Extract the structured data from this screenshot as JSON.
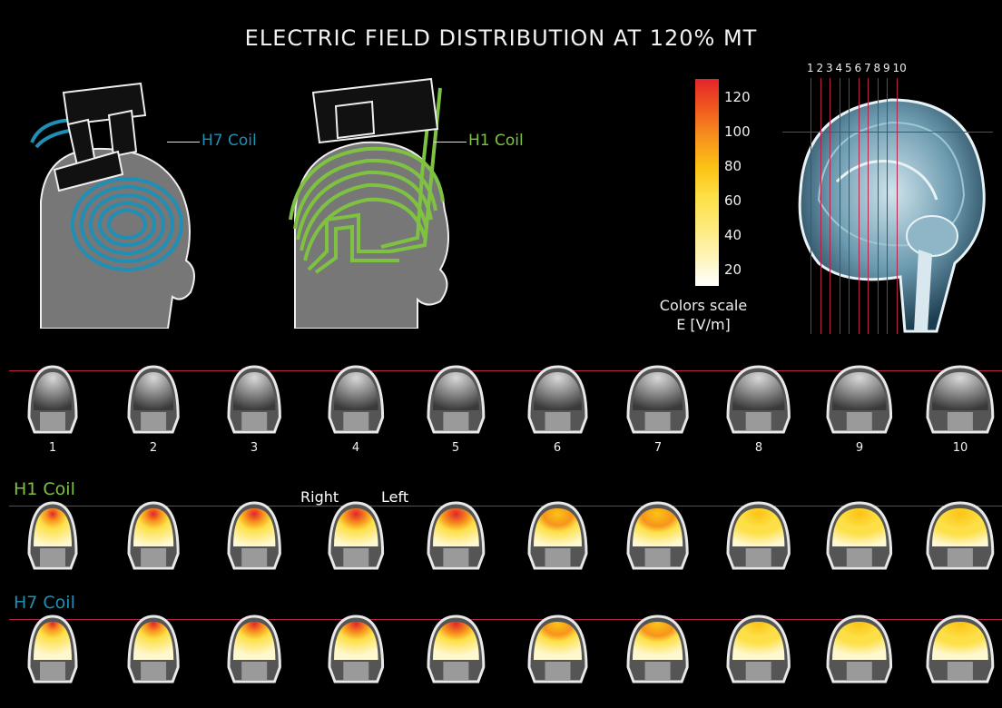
{
  "title": "ELECTRIC FIELD DISTRIBUTION AT 120% MT",
  "coils": {
    "h7_label": "H7 Coil",
    "h1_label": "H1 Coil"
  },
  "color_scale": {
    "caption_line1": "Colors scale",
    "caption_line2": "E [V/m]",
    "ticks": [
      "120",
      "100",
      "80",
      "60",
      "40",
      "20"
    ],
    "colors": [
      "#e3242b",
      "#f05a1e",
      "#f7941d",
      "#fbc314",
      "#fde047",
      "#fdea7a",
      "#fef4b8",
      "#ffffff"
    ]
  },
  "sagittal": {
    "slice_numbers": [
      "1",
      "2",
      "3",
      "4",
      "5",
      "6",
      "7",
      "8",
      "9",
      "10"
    ]
  },
  "rows": {
    "slice_numbers": [
      "1",
      "2",
      "3",
      "4",
      "5",
      "6",
      "7",
      "8",
      "9",
      "10"
    ],
    "h1_row_label": "H1 Coil",
    "h7_row_label": "H7 Coil",
    "right_label": "Right",
    "left_label": "Left"
  },
  "accent_colors": {
    "h7": "#1f8fb5",
    "h1": "#7fc241",
    "guide_line": "#b3244a"
  }
}
